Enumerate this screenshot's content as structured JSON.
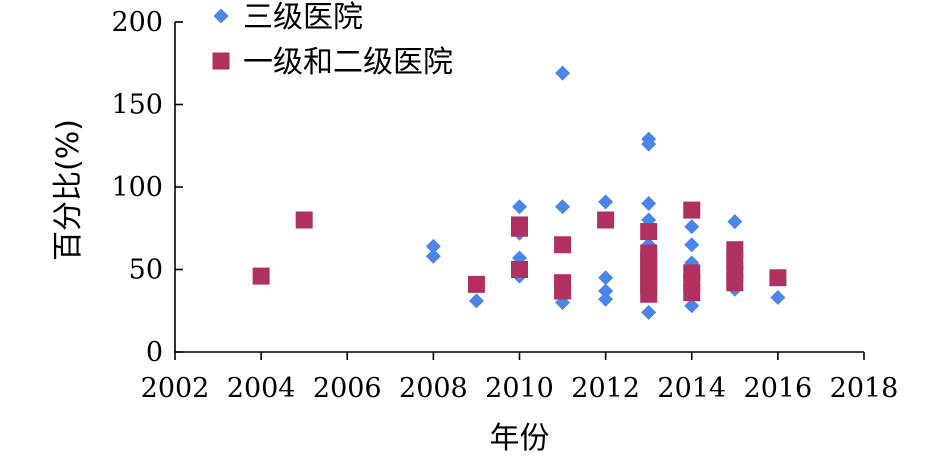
{
  "chart_data": {
    "type": "scatter",
    "xlabel": "年份",
    "ylabel": "百分比(%)",
    "xlim": [
      2002,
      2018
    ],
    "ylim": [
      0,
      200
    ],
    "x_ticks": [
      2002,
      2004,
      2006,
      2008,
      2010,
      2012,
      2014,
      2016,
      2018
    ],
    "y_ticks": [
      0,
      50,
      100,
      150,
      200
    ],
    "grid": false,
    "legend": "top-left",
    "series": [
      {
        "name": "三级医院",
        "marker": "diamond",
        "color": "#4A86E8",
        "points": [
          [
            2008,
            64
          ],
          [
            2008,
            58
          ],
          [
            2009,
            31
          ],
          [
            2010,
            88
          ],
          [
            2010,
            72
          ],
          [
            2010,
            57
          ],
          [
            2010,
            46
          ],
          [
            2011,
            169
          ],
          [
            2011,
            88
          ],
          [
            2011,
            30
          ],
          [
            2012,
            91
          ],
          [
            2012,
            45
          ],
          [
            2012,
            37
          ],
          [
            2012,
            32
          ],
          [
            2013,
            129
          ],
          [
            2013,
            126
          ],
          [
            2013,
            90
          ],
          [
            2013,
            80
          ],
          [
            2013,
            65
          ],
          [
            2013,
            55
          ],
          [
            2013,
            24
          ],
          [
            2014,
            76
          ],
          [
            2014,
            65
          ],
          [
            2014,
            54
          ],
          [
            2014,
            28
          ],
          [
            2015,
            79
          ],
          [
            2015,
            38
          ],
          [
            2016,
            33
          ]
        ]
      },
      {
        "name": "一级和二级医院",
        "marker": "square",
        "color": "#B03060",
        "points": [
          [
            2004,
            46
          ],
          [
            2005,
            80
          ],
          [
            2009,
            41
          ],
          [
            2010,
            77
          ],
          [
            2010,
            75
          ],
          [
            2010,
            50
          ],
          [
            2011,
            65
          ],
          [
            2011,
            42
          ],
          [
            2011,
            37
          ],
          [
            2012,
            80
          ],
          [
            2013,
            73
          ],
          [
            2013,
            60
          ],
          [
            2013,
            55
          ],
          [
            2013,
            50
          ],
          [
            2013,
            45
          ],
          [
            2013,
            40
          ],
          [
            2013,
            35
          ],
          [
            2014,
            86
          ],
          [
            2014,
            48
          ],
          [
            2014,
            42
          ],
          [
            2014,
            36
          ],
          [
            2015,
            62
          ],
          [
            2015,
            55
          ],
          [
            2015,
            48
          ],
          [
            2015,
            42
          ],
          [
            2016,
            45
          ]
        ]
      }
    ]
  }
}
